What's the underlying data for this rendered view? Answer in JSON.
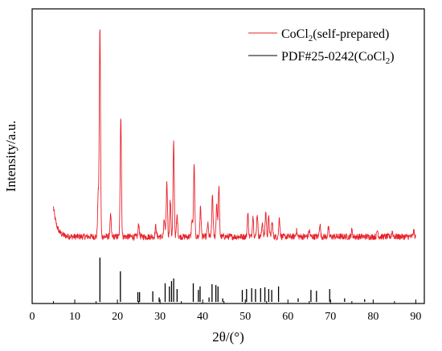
{
  "chart_data": {
    "type": "line",
    "xlabel": "2θ/(°)",
    "ylabel": "Intensity/a.u.",
    "xlim": [
      0,
      92
    ],
    "x_ticks": [
      0,
      10,
      20,
      30,
      40,
      50,
      60,
      70,
      80,
      90
    ],
    "y_ticks_shown": false,
    "grid": false,
    "legend_position": "top-right",
    "series": [
      {
        "name": "CoCl",
        "name_subscript": "2",
        "name_suffix": "(self-prepared)",
        "kind": "xrd-pattern",
        "color": "#e8212a",
        "baseline": 0.08,
        "x_start": 5,
        "x_end": 90,
        "peaks": [
          {
            "x": 15.9,
            "h": 1.0
          },
          {
            "x": 15.5,
            "h": 0.2
          },
          {
            "x": 18.4,
            "h": 0.1
          },
          {
            "x": 20.8,
            "h": 0.58
          },
          {
            "x": 25.0,
            "h": 0.06
          },
          {
            "x": 29.0,
            "h": 0.05
          },
          {
            "x": 31.0,
            "h": 0.08
          },
          {
            "x": 31.6,
            "h": 0.26
          },
          {
            "x": 32.4,
            "h": 0.17
          },
          {
            "x": 33.2,
            "h": 0.45
          },
          {
            "x": 34.0,
            "h": 0.1
          },
          {
            "x": 37.5,
            "h": 0.08
          },
          {
            "x": 38.0,
            "h": 0.34
          },
          {
            "x": 39.5,
            "h": 0.14
          },
          {
            "x": 41.2,
            "h": 0.06
          },
          {
            "x": 42.3,
            "h": 0.2
          },
          {
            "x": 43.3,
            "h": 0.16
          },
          {
            "x": 43.8,
            "h": 0.24
          },
          {
            "x": 50.6,
            "h": 0.11
          },
          {
            "x": 51.8,
            "h": 0.1
          },
          {
            "x": 52.8,
            "h": 0.11
          },
          {
            "x": 54.0,
            "h": 0.07
          },
          {
            "x": 54.8,
            "h": 0.12
          },
          {
            "x": 55.5,
            "h": 0.09
          },
          {
            "x": 56.3,
            "h": 0.07
          },
          {
            "x": 58.0,
            "h": 0.09
          },
          {
            "x": 62.0,
            "h": 0.03
          },
          {
            "x": 65.0,
            "h": 0.03
          },
          {
            "x": 67.5,
            "h": 0.06
          },
          {
            "x": 69.5,
            "h": 0.04
          },
          {
            "x": 75.0,
            "h": 0.03
          },
          {
            "x": 81.0,
            "h": 0.03
          },
          {
            "x": 84.5,
            "h": 0.025
          },
          {
            "x": 89.5,
            "h": 0.025
          }
        ]
      },
      {
        "name": "PDF#25-0242(CoCl",
        "name_subscript": "2",
        "name_suffix": ")",
        "kind": "reference-sticks",
        "color": "#000000",
        "sticks": [
          {
            "x": 15.9,
            "h": 1.0
          },
          {
            "x": 20.7,
            "h": 0.69
          },
          {
            "x": 24.8,
            "h": 0.22
          },
          {
            "x": 25.2,
            "h": 0.22
          },
          {
            "x": 28.3,
            "h": 0.24
          },
          {
            "x": 29.8,
            "h": 0.1
          },
          {
            "x": 31.2,
            "h": 0.42
          },
          {
            "x": 32.2,
            "h": 0.35
          },
          {
            "x": 32.7,
            "h": 0.47
          },
          {
            "x": 33.2,
            "h": 0.53
          },
          {
            "x": 34.0,
            "h": 0.29
          },
          {
            "x": 37.8,
            "h": 0.42
          },
          {
            "x": 39.0,
            "h": 0.27
          },
          {
            "x": 39.4,
            "h": 0.35
          },
          {
            "x": 41.5,
            "h": 0.1
          },
          {
            "x": 42.2,
            "h": 0.4
          },
          {
            "x": 43.1,
            "h": 0.38
          },
          {
            "x": 43.6,
            "h": 0.35
          },
          {
            "x": 44.7,
            "h": 0.08
          },
          {
            "x": 49.3,
            "h": 0.27
          },
          {
            "x": 50.3,
            "h": 0.29
          },
          {
            "x": 51.5,
            "h": 0.31
          },
          {
            "x": 52.4,
            "h": 0.29
          },
          {
            "x": 53.6,
            "h": 0.31
          },
          {
            "x": 54.6,
            "h": 0.33
          },
          {
            "x": 55.5,
            "h": 0.29
          },
          {
            "x": 56.2,
            "h": 0.27
          },
          {
            "x": 57.8,
            "h": 0.35
          },
          {
            "x": 62.4,
            "h": 0.08
          },
          {
            "x": 65.4,
            "h": 0.27
          },
          {
            "x": 66.7,
            "h": 0.25
          },
          {
            "x": 69.8,
            "h": 0.29
          },
          {
            "x": 73.3,
            "h": 0.08
          },
          {
            "x": 78.0,
            "h": 0.06
          }
        ]
      }
    ]
  }
}
